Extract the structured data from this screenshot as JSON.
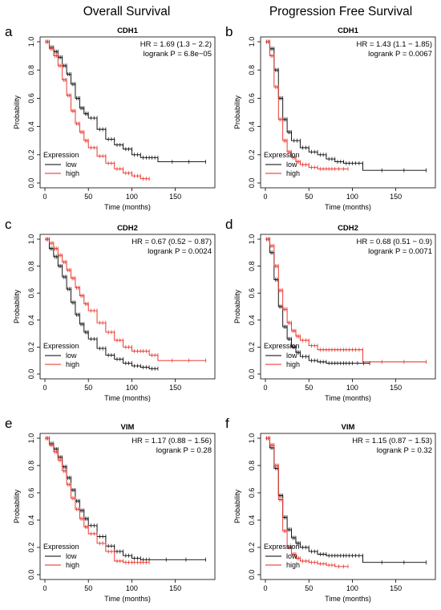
{
  "columns": [
    "Overall Survival",
    "Progression Free Survival"
  ],
  "colors": {
    "low": "#000000",
    "high": "#e8271d"
  },
  "chart_data": [
    {
      "panel": "a",
      "type": "line",
      "title": "CDH1",
      "hr_text": "HR = 1.69 (1.3 − 2.2)",
      "p_text": "logrank P = 6.8e−05",
      "xlabel": "Time (months)",
      "ylabel": "Probability",
      "xlim": [
        0,
        190
      ],
      "ylim": [
        0,
        1
      ],
      "xticks": [
        0,
        50,
        100,
        150
      ],
      "yticks": [
        "0.0",
        "0.2",
        "0.4",
        "0.6",
        "0.8",
        "1.0"
      ],
      "legend_title": "Expression",
      "legend": [
        "low",
        "high"
      ],
      "legend_position": "bottom-left",
      "series": [
        {
          "name": "low",
          "x": [
            0,
            5,
            10,
            15,
            20,
            25,
            30,
            35,
            40,
            45,
            50,
            60,
            70,
            80,
            90,
            100,
            110,
            120,
            130,
            185
          ],
          "y": [
            1.0,
            0.96,
            0.93,
            0.89,
            0.83,
            0.77,
            0.7,
            0.6,
            0.53,
            0.49,
            0.46,
            0.38,
            0.31,
            0.27,
            0.24,
            0.2,
            0.18,
            0.18,
            0.15,
            0.15
          ]
        },
        {
          "name": "high",
          "x": [
            0,
            5,
            10,
            15,
            20,
            25,
            30,
            35,
            40,
            45,
            50,
            60,
            70,
            80,
            90,
            100,
            110,
            120
          ],
          "y": [
            1.0,
            0.95,
            0.9,
            0.83,
            0.73,
            0.62,
            0.51,
            0.42,
            0.36,
            0.3,
            0.25,
            0.19,
            0.14,
            0.1,
            0.07,
            0.05,
            0.03,
            0.02
          ]
        }
      ]
    },
    {
      "panel": "b",
      "type": "line",
      "title": "CDH1",
      "hr_text": "HR = 1.43 (1.1 − 1.85)",
      "p_text": "logrank P = 0.0067",
      "xlabel": "Time (months)",
      "ylabel": "Probability",
      "xlim": [
        0,
        190
      ],
      "ylim": [
        0,
        1
      ],
      "xticks": [
        0,
        50,
        100,
        150
      ],
      "yticks": [
        "0.0",
        "0.2",
        "0.4",
        "0.6",
        "0.8",
        "1.0"
      ],
      "legend_title": "Expression",
      "legend": [
        "low",
        "high"
      ],
      "legend_position": "bottom-left",
      "series": [
        {
          "name": "low",
          "x": [
            0,
            5,
            10,
            15,
            20,
            25,
            30,
            40,
            50,
            60,
            70,
            80,
            90,
            100,
            112,
            185
          ],
          "y": [
            1.0,
            0.95,
            0.8,
            0.6,
            0.45,
            0.36,
            0.3,
            0.25,
            0.22,
            0.2,
            0.17,
            0.15,
            0.14,
            0.14,
            0.09,
            0.09
          ]
        },
        {
          "name": "high",
          "x": [
            0,
            5,
            10,
            15,
            20,
            25,
            30,
            35,
            40,
            50,
            60,
            70,
            80,
            95
          ],
          "y": [
            1.0,
            0.9,
            0.68,
            0.45,
            0.3,
            0.22,
            0.18,
            0.15,
            0.13,
            0.11,
            0.1,
            0.1,
            0.1,
            0.1
          ]
        }
      ]
    },
    {
      "panel": "c",
      "type": "line",
      "title": "CDH2",
      "hr_text": "HR = 0.67 (0.52 − 0.87)",
      "p_text": "logrank P = 0.0024",
      "xlabel": "Time (months)",
      "ylabel": "Probability",
      "xlim": [
        0,
        190
      ],
      "ylim": [
        0,
        1
      ],
      "xticks": [
        0,
        50,
        100,
        150
      ],
      "yticks": [
        "0.0",
        "0.2",
        "0.4",
        "0.6",
        "0.8",
        "1.0"
      ],
      "legend_title": "Expression",
      "legend": [
        "low",
        "high"
      ],
      "legend_position": "bottom-left",
      "series": [
        {
          "name": "low",
          "x": [
            0,
            5,
            10,
            15,
            20,
            25,
            30,
            35,
            40,
            45,
            50,
            60,
            70,
            80,
            90,
            100,
            110,
            120,
            130
          ],
          "y": [
            1.0,
            0.93,
            0.87,
            0.8,
            0.72,
            0.63,
            0.53,
            0.44,
            0.37,
            0.31,
            0.26,
            0.19,
            0.14,
            0.11,
            0.08,
            0.06,
            0.05,
            0.04,
            0.04
          ]
        },
        {
          "name": "high",
          "x": [
            0,
            5,
            10,
            15,
            20,
            25,
            30,
            35,
            40,
            45,
            50,
            60,
            70,
            80,
            90,
            100,
            110,
            120,
            130,
            185
          ],
          "y": [
            1.0,
            0.97,
            0.93,
            0.88,
            0.83,
            0.77,
            0.71,
            0.64,
            0.58,
            0.52,
            0.47,
            0.38,
            0.31,
            0.25,
            0.2,
            0.17,
            0.17,
            0.14,
            0.1,
            0.1
          ]
        }
      ]
    },
    {
      "panel": "d",
      "type": "line",
      "title": "CDH2",
      "hr_text": "HR = 0.68 (0.51 − 0.9)",
      "p_text": "logrank P = 0.0071",
      "xlabel": "Time (months)",
      "ylabel": "Probability",
      "xlim": [
        0,
        190
      ],
      "ylim": [
        0,
        1
      ],
      "xticks": [
        0,
        50,
        100,
        150
      ],
      "yticks": [
        "0.0",
        "0.2",
        "0.4",
        "0.6",
        "0.8",
        "1.0"
      ],
      "legend_title": "Expression",
      "legend": [
        "low",
        "high"
      ],
      "legend_position": "bottom-left",
      "series": [
        {
          "name": "low",
          "x": [
            0,
            5,
            10,
            15,
            20,
            25,
            30,
            35,
            40,
            50,
            60,
            70,
            80,
            90,
            100,
            120
          ],
          "y": [
            1.0,
            0.9,
            0.7,
            0.5,
            0.35,
            0.26,
            0.2,
            0.16,
            0.13,
            0.1,
            0.09,
            0.08,
            0.08,
            0.08,
            0.08,
            0.08
          ]
        },
        {
          "name": "high",
          "x": [
            0,
            5,
            10,
            15,
            20,
            25,
            30,
            35,
            40,
            50,
            60,
            70,
            80,
            90,
            100,
            112,
            185
          ],
          "y": [
            1.0,
            0.95,
            0.8,
            0.62,
            0.48,
            0.38,
            0.32,
            0.28,
            0.25,
            0.21,
            0.18,
            0.18,
            0.18,
            0.18,
            0.18,
            0.09,
            0.09
          ]
        }
      ]
    },
    {
      "panel": "e",
      "type": "line",
      "title": "VIM",
      "hr_text": "HR = 1.17 (0.88 − 1.56)",
      "p_text": "logrank P = 0.28",
      "xlabel": "Time (months)",
      "ylabel": "Probability",
      "xlim": [
        0,
        190
      ],
      "ylim": [
        0,
        1
      ],
      "xticks": [
        0,
        50,
        100,
        150
      ],
      "yticks": [
        "0.0",
        "0.2",
        "0.4",
        "0.6",
        "0.8",
        "1.0"
      ],
      "legend_title": "Expression",
      "legend": [
        "low",
        "high"
      ],
      "legend_position": "bottom-left",
      "series": [
        {
          "name": "low",
          "x": [
            0,
            5,
            10,
            15,
            20,
            25,
            30,
            35,
            40,
            45,
            50,
            60,
            70,
            80,
            90,
            100,
            110,
            120,
            185
          ],
          "y": [
            1.0,
            0.96,
            0.92,
            0.86,
            0.79,
            0.71,
            0.62,
            0.54,
            0.47,
            0.41,
            0.36,
            0.28,
            0.21,
            0.17,
            0.14,
            0.12,
            0.11,
            0.11,
            0.11
          ]
        },
        {
          "name": "high",
          "x": [
            0,
            5,
            10,
            15,
            20,
            25,
            30,
            35,
            40,
            45,
            50,
            60,
            70,
            80,
            90,
            100,
            110,
            120
          ],
          "y": [
            1.0,
            0.95,
            0.9,
            0.84,
            0.76,
            0.66,
            0.56,
            0.48,
            0.41,
            0.35,
            0.3,
            0.23,
            0.17,
            0.1,
            0.09,
            0.09,
            0.09,
            0.09
          ]
        }
      ]
    },
    {
      "panel": "f",
      "type": "line",
      "title": "VIM",
      "hr_text": "HR = 1.15 (0.87 − 1.53)",
      "p_text": "logrank P = 0.32",
      "xlabel": "Time (months)",
      "ylabel": "Probability",
      "xlim": [
        0,
        190
      ],
      "ylim": [
        0,
        1
      ],
      "xticks": [
        0,
        50,
        100,
        150
      ],
      "yticks": [
        "0.0",
        "0.2",
        "0.4",
        "0.6",
        "0.8",
        "1.0"
      ],
      "legend_title": "Expression",
      "legend": [
        "low",
        "high"
      ],
      "legend_position": "bottom-left",
      "series": [
        {
          "name": "low",
          "x": [
            0,
            5,
            10,
            15,
            20,
            25,
            30,
            35,
            40,
            50,
            60,
            70,
            80,
            90,
            100,
            112,
            185
          ],
          "y": [
            1.0,
            0.93,
            0.78,
            0.58,
            0.42,
            0.33,
            0.27,
            0.23,
            0.2,
            0.17,
            0.15,
            0.14,
            0.14,
            0.14,
            0.14,
            0.09,
            0.09
          ]
        },
        {
          "name": "high",
          "x": [
            0,
            5,
            10,
            15,
            20,
            25,
            30,
            35,
            40,
            50,
            60,
            70,
            80,
            95
          ],
          "y": [
            1.0,
            0.95,
            0.8,
            0.55,
            0.32,
            0.2,
            0.15,
            0.12,
            0.1,
            0.09,
            0.08,
            0.07,
            0.06,
            0.06
          ]
        }
      ]
    }
  ]
}
